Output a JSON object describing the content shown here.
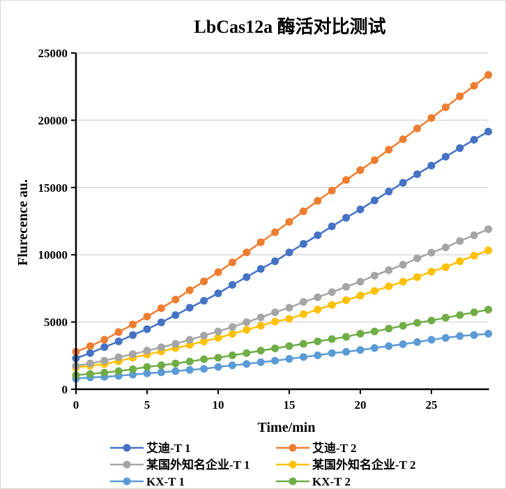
{
  "chart_data": {
    "type": "line",
    "title": "LbCas12a 酶活对比测试",
    "xlabel": "Time/min",
    "ylabel": "Flurecence au.",
    "xlim": [
      0,
      29
    ],
    "ylim": [
      0,
      25000
    ],
    "xticks": [
      0,
      5,
      10,
      15,
      20,
      25
    ],
    "yticks": [
      0,
      5000,
      10000,
      15000,
      20000,
      25000
    ],
    "grid": "horizontal",
    "legend_position": "bottom",
    "x": [
      0,
      1,
      2,
      3,
      4,
      5,
      6,
      7,
      8,
      9,
      10,
      11,
      12,
      13,
      14,
      15,
      16,
      17,
      18,
      19,
      20,
      21,
      22,
      23,
      24,
      25,
      26,
      27,
      28,
      29
    ],
    "series": [
      {
        "name": "艾迪-T 1",
        "color": "#4472C4",
        "values": [
          2300,
          2690,
          3130,
          3560,
          4030,
          4470,
          4970,
          5510,
          6060,
          6580,
          7130,
          7760,
          8340,
          8950,
          9520,
          10170,
          10810,
          11450,
          12110,
          12750,
          13370,
          14040,
          14700,
          15350,
          15990,
          16630,
          17290,
          17930,
          18550,
          19160
        ]
      },
      {
        "name": "艾迪-T 2",
        "color": "#ED7D31",
        "values": [
          2780,
          3210,
          3680,
          4250,
          4820,
          5400,
          6030,
          6670,
          7360,
          8020,
          8700,
          9430,
          10170,
          10930,
          11670,
          12450,
          13230,
          14010,
          14770,
          15560,
          16290,
          17030,
          17810,
          18590,
          19390,
          20170,
          20970,
          21780,
          22560,
          23370
        ]
      },
      {
        "name": "某国外知名企业-T 1",
        "color": "#A5A5A5",
        "values": [
          1750,
          1920,
          2120,
          2380,
          2610,
          2870,
          3120,
          3380,
          3680,
          3990,
          4300,
          4630,
          4990,
          5340,
          5720,
          6060,
          6490,
          6840,
          7220,
          7620,
          8000,
          8450,
          8860,
          9260,
          9730,
          10160,
          10550,
          11020,
          11450,
          11900
        ]
      },
      {
        "name": "某国外知名企业-T 2",
        "color": "#FFC000",
        "values": [
          1610,
          1750,
          1870,
          2090,
          2350,
          2580,
          2810,
          3060,
          3300,
          3560,
          3820,
          4110,
          4420,
          4720,
          5030,
          5230,
          5580,
          5920,
          6270,
          6620,
          6960,
          7310,
          7650,
          8000,
          8340,
          8740,
          9080,
          9520,
          9930,
          10330
        ]
      },
      {
        "name": "KX-T 1",
        "color": "#5B9BD5",
        "values": [
          790,
          880,
          920,
          1000,
          1090,
          1180,
          1260,
          1350,
          1440,
          1520,
          1660,
          1780,
          1880,
          2010,
          2120,
          2260,
          2400,
          2520,
          2690,
          2780,
          2920,
          3070,
          3210,
          3350,
          3510,
          3680,
          3820,
          3960,
          4030,
          4130
        ]
      },
      {
        "name": "KX-T 2",
        "color": "#70AD47",
        "values": [
          1050,
          1140,
          1230,
          1350,
          1490,
          1660,
          1780,
          1920,
          2060,
          2230,
          2350,
          2520,
          2690,
          2870,
          3040,
          3210,
          3380,
          3560,
          3730,
          3900,
          4130,
          4300,
          4510,
          4720,
          4940,
          5110,
          5320,
          5510,
          5720,
          5920
        ]
      }
    ]
  }
}
